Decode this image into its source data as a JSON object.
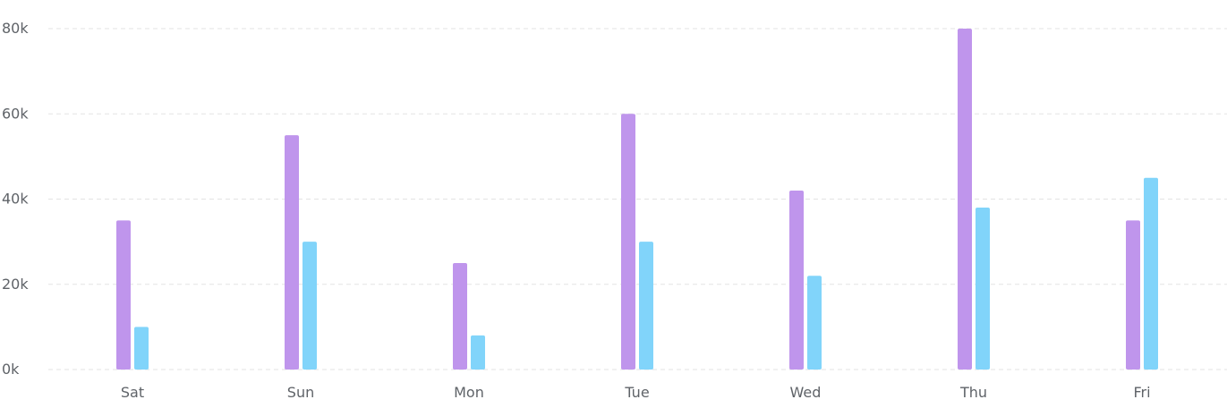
{
  "chart_data": {
    "type": "bar",
    "categories": [
      "Sat",
      "Sun",
      "Mon",
      "Tue",
      "Wed",
      "Thu",
      "Fri"
    ],
    "series": [
      {
        "values": [
          35000,
          55000,
          25000,
          60000,
          42000,
          80000,
          35000
        ],
        "color": "#bf95ec"
      },
      {
        "values": [
          10000,
          30000,
          8000,
          30000,
          22000,
          38000,
          45000
        ],
        "color": "#81d4fa"
      }
    ],
    "ylim": [
      0,
      80000
    ],
    "yticks": [
      "0k",
      "20k",
      "40k",
      "60k",
      "80k"
    ],
    "grid": true,
    "legend": "none"
  }
}
